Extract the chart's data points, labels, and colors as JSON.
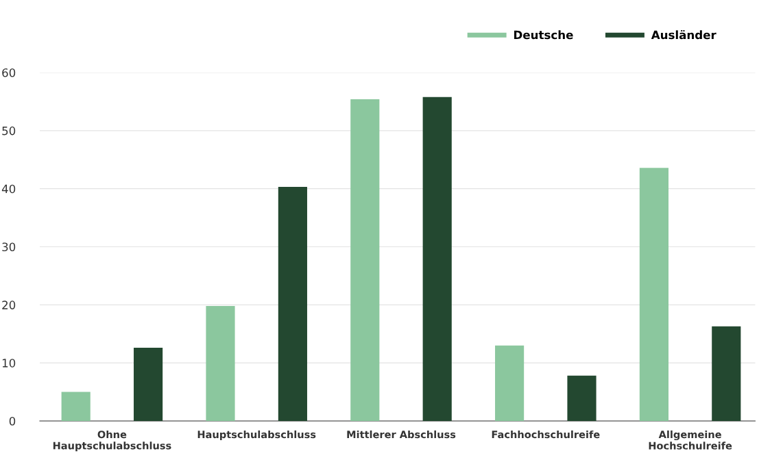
{
  "chart_data": {
    "type": "bar",
    "categories": [
      "Ohne\nHauptschulabschluss",
      "Hauptschulabschluss",
      "Mittlerer Abschluss",
      "Fachhochschulreife",
      "Allgemeine\nHochschulreife"
    ],
    "series": [
      {
        "name": "Deutsche",
        "color": "#8bc79e",
        "values": [
          5.0,
          19.8,
          55.4,
          13.0,
          43.6
        ]
      },
      {
        "name": "Ausländer",
        "color": "#234830",
        "values": [
          12.6,
          40.3,
          55.8,
          7.8,
          16.3
        ]
      }
    ],
    "ylim": [
      0,
      60
    ],
    "yticks": [
      0,
      10,
      20,
      30,
      40,
      50,
      60
    ],
    "grid": "y",
    "legend": "top right"
  }
}
